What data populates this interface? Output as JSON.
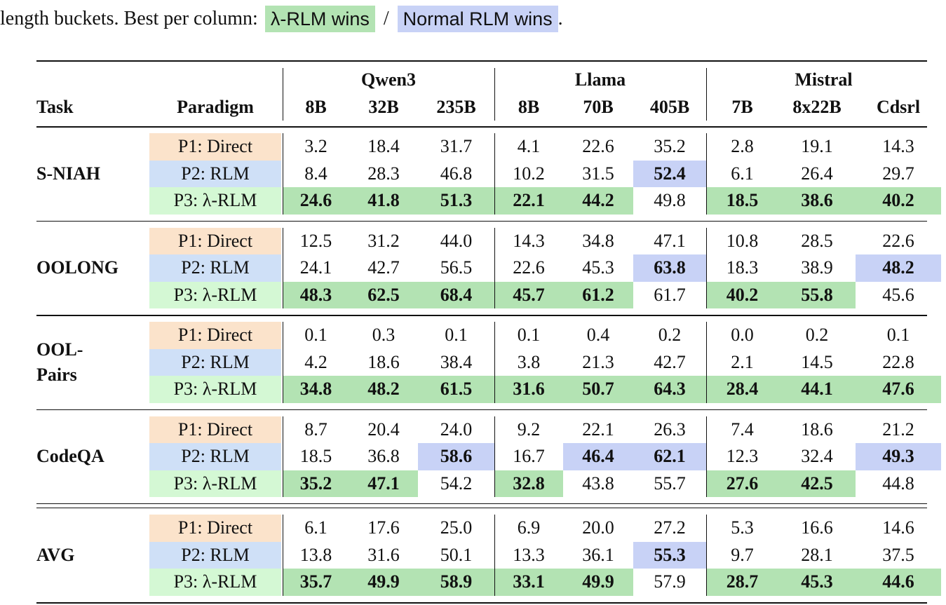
{
  "caption": {
    "text": "length buckets. Best per column:",
    "lambda_win": "λ-RLM wins",
    "separator": "/",
    "normal_win": "Normal RLM wins",
    "end": "."
  },
  "table": {
    "header": {
      "task": "Task",
      "paradigm": "Paradigm",
      "groups": [
        {
          "name": "Qwen3",
          "models": [
            "8B",
            "32B",
            "235B"
          ]
        },
        {
          "name": "Llama",
          "models": [
            "8B",
            "70B",
            "405B"
          ]
        },
        {
          "name": "Mistral",
          "models": [
            "7B",
            "8x22B",
            "Cdsrl"
          ]
        }
      ]
    },
    "sections": [
      {
        "task": [
          "S-NIAH"
        ],
        "rows": [
          {
            "paradigm": "P1: Direct",
            "values": [
              "3.2",
              "18.4",
              "31.7",
              "4.1",
              "22.6",
              "35.2",
              "2.8",
              "19.1",
              "14.3"
            ],
            "wins": [
              null,
              null,
              null,
              null,
              null,
              null,
              null,
              null,
              null
            ]
          },
          {
            "paradigm": "P2: RLM",
            "values": [
              "8.4",
              "28.3",
              "46.8",
              "10.2",
              "31.5",
              "52.4",
              "6.1",
              "26.4",
              "29.7"
            ],
            "wins": [
              null,
              null,
              null,
              null,
              null,
              "normal",
              null,
              null,
              null
            ]
          },
          {
            "paradigm": "P3: λ-RLM",
            "values": [
              "24.6",
              "41.8",
              "51.3",
              "22.1",
              "44.2",
              "49.8",
              "18.5",
              "38.6",
              "40.2"
            ],
            "wins": [
              "lambda",
              "lambda",
              "lambda",
              "lambda",
              "lambda",
              null,
              "lambda",
              "lambda",
              "lambda"
            ]
          }
        ]
      },
      {
        "task": [
          "OOLONG"
        ],
        "rows": [
          {
            "paradigm": "P1: Direct",
            "values": [
              "12.5",
              "31.2",
              "44.0",
              "14.3",
              "34.8",
              "47.1",
              "10.8",
              "28.5",
              "22.6"
            ],
            "wins": [
              null,
              null,
              null,
              null,
              null,
              null,
              null,
              null,
              null
            ]
          },
          {
            "paradigm": "P2: RLM",
            "values": [
              "24.1",
              "42.7",
              "56.5",
              "22.6",
              "45.3",
              "63.8",
              "18.3",
              "38.9",
              "48.2"
            ],
            "wins": [
              null,
              null,
              null,
              null,
              null,
              "normal",
              null,
              null,
              "normal"
            ]
          },
          {
            "paradigm": "P3: λ-RLM",
            "values": [
              "48.3",
              "62.5",
              "68.4",
              "45.7",
              "61.2",
              "61.7",
              "40.2",
              "55.8",
              "45.6"
            ],
            "wins": [
              "lambda",
              "lambda",
              "lambda",
              "lambda",
              "lambda",
              null,
              "lambda",
              "lambda",
              null
            ]
          }
        ]
      },
      {
        "task": [
          "OOL-",
          "Pairs"
        ],
        "rows": [
          {
            "paradigm": "P1: Direct",
            "values": [
              "0.1",
              "0.3",
              "0.1",
              "0.1",
              "0.4",
              "0.2",
              "0.0",
              "0.2",
              "0.1"
            ],
            "wins": [
              null,
              null,
              null,
              null,
              null,
              null,
              null,
              null,
              null
            ]
          },
          {
            "paradigm": "P2: RLM",
            "values": [
              "4.2",
              "18.6",
              "38.4",
              "3.8",
              "21.3",
              "42.7",
              "2.1",
              "14.5",
              "22.8"
            ],
            "wins": [
              null,
              null,
              null,
              null,
              null,
              null,
              null,
              null,
              null
            ]
          },
          {
            "paradigm": "P3: λ-RLM",
            "values": [
              "34.8",
              "48.2",
              "61.5",
              "31.6",
              "50.7",
              "64.3",
              "28.4",
              "44.1",
              "47.6"
            ],
            "wins": [
              "lambda",
              "lambda",
              "lambda",
              "lambda",
              "lambda",
              "lambda",
              "lambda",
              "lambda",
              "lambda"
            ]
          }
        ]
      },
      {
        "task": [
          "CodeQA"
        ],
        "rows": [
          {
            "paradigm": "P1: Direct",
            "values": [
              "8.7",
              "20.4",
              "24.0",
              "9.2",
              "22.1",
              "26.3",
              "7.4",
              "18.6",
              "21.2"
            ],
            "wins": [
              null,
              null,
              null,
              null,
              null,
              null,
              null,
              null,
              null
            ]
          },
          {
            "paradigm": "P2: RLM",
            "values": [
              "18.5",
              "36.8",
              "58.6",
              "16.7",
              "46.4",
              "62.1",
              "12.3",
              "32.4",
              "49.3"
            ],
            "wins": [
              null,
              null,
              "normal",
              null,
              "normal",
              "normal",
              null,
              null,
              "normal"
            ]
          },
          {
            "paradigm": "P3: λ-RLM",
            "values": [
              "35.2",
              "47.1",
              "54.2",
              "32.8",
              "43.8",
              "55.7",
              "27.6",
              "42.5",
              "44.8"
            ],
            "wins": [
              "lambda",
              "lambda",
              null,
              "lambda",
              null,
              null,
              "lambda",
              "lambda",
              null
            ]
          }
        ]
      },
      {
        "task": [
          "AVG"
        ],
        "rows": [
          {
            "paradigm": "P1: Direct",
            "values": [
              "6.1",
              "17.6",
              "25.0",
              "6.9",
              "20.0",
              "27.2",
              "5.3",
              "16.6",
              "14.6"
            ],
            "wins": [
              null,
              null,
              null,
              null,
              null,
              null,
              null,
              null,
              null
            ]
          },
          {
            "paradigm": "P2: RLM",
            "values": [
              "13.8",
              "31.6",
              "50.1",
              "13.3",
              "36.1",
              "55.3",
              "9.7",
              "28.1",
              "37.5"
            ],
            "wins": [
              null,
              null,
              null,
              null,
              null,
              "normal",
              null,
              null,
              null
            ]
          },
          {
            "paradigm": "P3: λ-RLM",
            "values": [
              "35.7",
              "49.9",
              "58.9",
              "33.1",
              "49.9",
              "57.9",
              "28.7",
              "45.3",
              "44.6"
            ],
            "wins": [
              "lambda",
              "lambda",
              "lambda",
              "lambda",
              "lambda",
              null,
              "lambda",
              "lambda",
              "lambda"
            ]
          }
        ]
      }
    ]
  }
}
